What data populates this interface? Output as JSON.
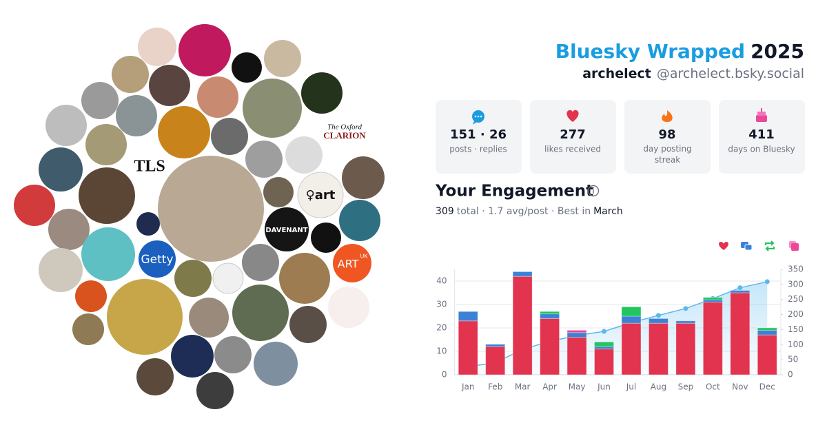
{
  "header": {
    "title": "Bluesky Wrapped",
    "year": "2025",
    "display_name": "archelect",
    "handle": "@archelect.bsky.social"
  },
  "stats": [
    {
      "value": "151 · 26",
      "label": "posts · replies"
    },
    {
      "value": "277",
      "label": "likes received"
    },
    {
      "value": "98",
      "label": "day posting streak"
    },
    {
      "value": "411",
      "label": "days on Bluesky"
    }
  ],
  "avatar_texts": [
    "TLS",
    "The Oxford",
    "CLARION",
    "Getty",
    "DAVENANT",
    "♀art",
    "ART",
    "UK"
  ],
  "engagement": {
    "title": "Your Engagement",
    "total": "309",
    "summary": "total · 1.7 avg/post · Best in",
    "best": "March"
  },
  "chart_data": {
    "type": "stacked-bar",
    "categories": [
      "Jan",
      "Feb",
      "Mar",
      "Apr",
      "May",
      "Jun",
      "Jul",
      "Aug",
      "Sep",
      "Oct",
      "Nov",
      "Dec"
    ],
    "series": [
      {
        "color": "#e2334f",
        "values": [
          23,
          12,
          42,
          24,
          16,
          11,
          22,
          22,
          22,
          31,
          35,
          17
        ]
      },
      {
        "color": "#3b82d6",
        "values": [
          4,
          1,
          2,
          2,
          2,
          1,
          3,
          2,
          1,
          1,
          1,
          2
        ]
      },
      {
        "color": "#22c55e",
        "values": [
          0,
          0,
          0,
          1,
          0,
          2,
          4,
          0,
          0,
          1,
          0,
          1
        ]
      },
      {
        "color": "#ec4899",
        "values": [
          0,
          0,
          0,
          0,
          1,
          0,
          0,
          0,
          0,
          0,
          0,
          0
        ]
      },
      {
        "type": "line",
        "axis": "y2",
        "color": "#5bb8ec",
        "values": [
          27,
          40,
          84,
          111,
          130,
          144,
          173,
          197,
          220,
          253,
          289,
          309
        ]
      }
    ],
    "ylim": [
      0,
      45
    ],
    "yticks": [
      0,
      10,
      20,
      30,
      40
    ],
    "y2lim": [
      0,
      350
    ],
    "y2ticks": [
      0,
      50,
      100,
      150,
      200,
      250,
      300,
      350
    ],
    "grid": true
  }
}
